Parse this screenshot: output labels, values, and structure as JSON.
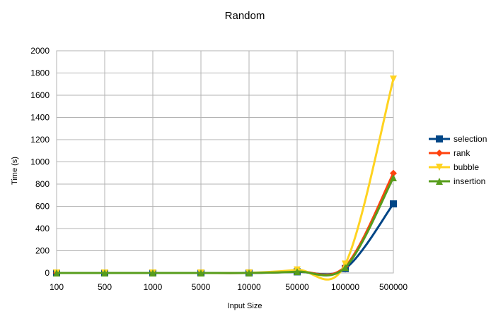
{
  "chart_data": {
    "type": "line",
    "title": "Random",
    "xlabel": "Input Size",
    "ylabel": "Time (s)",
    "categories": [
      "100",
      "500",
      "1000",
      "5000",
      "10000",
      "50000",
      "100000",
      "500000"
    ],
    "ylim": [
      0,
      2000
    ],
    "yticks": [
      0,
      200,
      400,
      600,
      800,
      1000,
      1200,
      1400,
      1600,
      1800,
      2000
    ],
    "grid": true,
    "smooth": true,
    "legend": "right",
    "series": [
      {
        "name": "selection",
        "color": "#004586",
        "marker": "square",
        "values": [
          0,
          0,
          0,
          0.1,
          0.4,
          10,
          40,
          622
        ]
      },
      {
        "name": "rank",
        "color": "#ff420e",
        "marker": "diamond",
        "values": [
          0,
          0,
          0,
          0.1,
          0.5,
          15,
          60,
          898
        ]
      },
      {
        "name": "bubble",
        "color": "#ffd320",
        "marker": "triangle-down",
        "values": [
          0,
          0,
          0,
          0.2,
          1,
          28,
          80,
          1745
        ]
      },
      {
        "name": "insertion",
        "color": "#579d1c",
        "marker": "triangle-up",
        "values": [
          0,
          0,
          0,
          0.1,
          0.5,
          12,
          50,
          857
        ]
      }
    ]
  }
}
